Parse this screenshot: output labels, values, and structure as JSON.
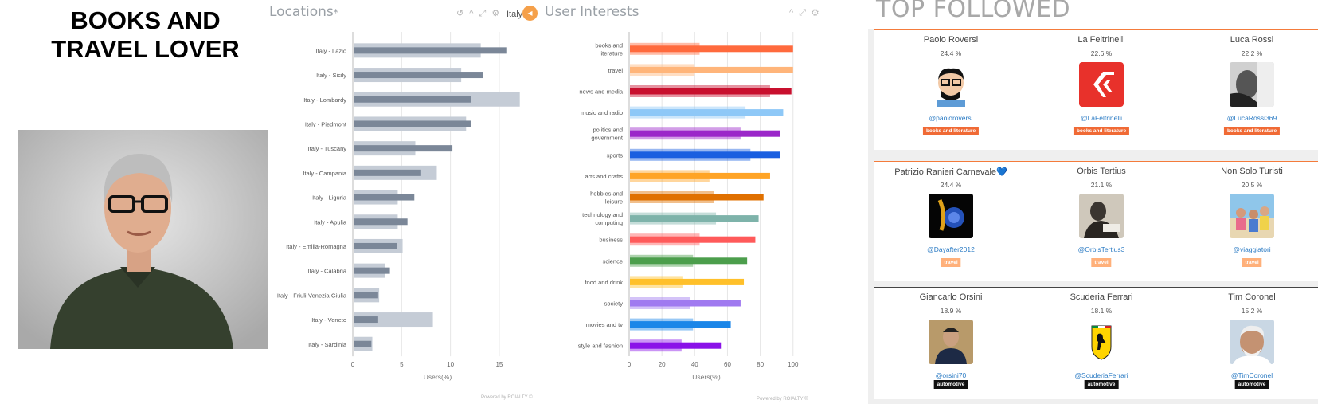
{
  "persona": {
    "title_line1": "BOOKS AND",
    "title_line2": "TRAVEL LOVER"
  },
  "locations_panel": {
    "title": "Locations",
    "title_mark": "*",
    "tools": "↺ ^ ⤢ ⚙",
    "footer": "Powered by ROIALTY ©"
  },
  "interests_panel": {
    "filter_label": "Italy",
    "title": "User Interests",
    "tools": "^ ⤢ ⚙",
    "footer": "Powered by ROIALTY ©"
  },
  "chart_data": [
    {
      "type": "bar",
      "orientation": "horizontal",
      "categories": [
        "Italy - Lazio",
        "Italy - Sicily",
        "Italy - Lombardy",
        "Italy - Piedmont",
        "Italy - Tuscany",
        "Italy - Campania",
        "Italy - Liguria",
        "Italy - Apulia",
        "Italy - Emilia-Romagna",
        "Italy - Calabria",
        "Italy - Friuli-Venezia Giulia",
        "Italy - Veneto",
        "Italy - Sardinia"
      ],
      "series": [
        {
          "values": [
            13.1,
            11.1,
            17.1,
            11.6,
            6.4,
            8.6,
            4.6,
            4.6,
            5.1,
            3.3,
            2.7,
            8.2,
            2.0
          ]
        },
        {
          "values": [
            15.8,
            13.3,
            12.1,
            12.1,
            10.2,
            7.0,
            6.3,
            5.6,
            4.5,
            3.8,
            2.6,
            2.6,
            1.9
          ]
        }
      ],
      "xticks": [
        "0",
        "5",
        "10",
        "15"
      ],
      "xlim": [
        0,
        19
      ],
      "xlabel": "Users(%)",
      "colors": {
        "light": "#c5ccd6",
        "dark": "#7b8798"
      }
    },
    {
      "type": "bar",
      "orientation": "horizontal",
      "categories": [
        "books and literature",
        "travel",
        "news and media",
        "music and radio",
        "politics and government",
        "sports",
        "arts and crafts",
        "hobbies and leisure",
        "technology and computing",
        "business",
        "science",
        "food and drink",
        "society",
        "movies and tv",
        "style and fashion"
      ],
      "series": [
        {
          "values": [
            43,
            40,
            86,
            71,
            68,
            74,
            49,
            52,
            53,
            43,
            39,
            33,
            37,
            39,
            32
          ]
        },
        {
          "values": [
            100,
            100,
            99,
            94,
            92,
            92,
            86,
            82,
            79,
            77,
            72,
            70,
            68,
            62,
            56
          ]
        }
      ],
      "xticks": [
        "0",
        "20",
        "40",
        "60",
        "80",
        "100"
      ],
      "xlim": [
        0,
        104
      ],
      "xlabel": "Users(%)",
      "colors": [
        "#ff6a3d",
        "#ffb57a",
        "#c8102e",
        "#8ec8f7",
        "#9b27c9",
        "#1a5fe0",
        "#ffa426",
        "#e07000",
        "#7eb3aa",
        "#ff5a5a",
        "#4c9e4c",
        "#ffc02a",
        "#a07af0",
        "#1b86e8",
        "#8a12e8"
      ]
    }
  ],
  "top_followed": {
    "title": "TOP FOLLOWED",
    "cards": [
      {
        "name": "Paolo Roversi",
        "percent": "24.4 %",
        "handle": "@paoloroversi",
        "tag": "books and literature",
        "tag_color": "#f06a35",
        "avatar": "cartoon-face"
      },
      {
        "name": "La Feltrinelli",
        "percent": "22.6 %",
        "handle": "@LaFeltrinelli",
        "tag": "books and literature",
        "tag_color": "#f06a35",
        "avatar": "feltrinelli-logo"
      },
      {
        "name": "Luca Rossi",
        "percent": "22.2 %",
        "handle": "@LucaRossi369",
        "tag": "books and literature",
        "tag_color": "#f06a35",
        "avatar": "bw-portrait"
      },
      {
        "name": "Patrizio Ranieri Carnevale",
        "name_icon": "💙",
        "percent": "24.4 %",
        "handle": "@Dayafter2012",
        "tag": "travel",
        "tag_color": "#ffb07a",
        "avatar": "blue-rose"
      },
      {
        "name": "Orbis Tertius",
        "percent": "21.1 %",
        "handle": "@OrbisTertius3",
        "tag": "travel",
        "tag_color": "#ffb07a",
        "avatar": "sepia-photo"
      },
      {
        "name": "Non Solo Turisti",
        "percent": "20.5 %",
        "handle": "@viaggiatori",
        "tag": "travel",
        "tag_color": "#ffb07a",
        "avatar": "beach-family"
      },
      {
        "name": "Giancarlo Orsini",
        "percent": "18.9 %",
        "handle": "@orsini70",
        "tag": "automotive",
        "tag_color": "#111111",
        "avatar": "man-portrait"
      },
      {
        "name": "Scuderia Ferrari",
        "percent": "18.1 %",
        "handle": "@ScuderiaFerrari",
        "tag": "automotive",
        "tag_color": "#111111",
        "avatar": "ferrari-shield"
      },
      {
        "name": "Tim Coronel",
        "percent": "15.2 %",
        "handle": "@TimCoronel",
        "tag": "automotive",
        "tag_color": "#111111",
        "avatar": "old-man-portrait"
      }
    ]
  }
}
